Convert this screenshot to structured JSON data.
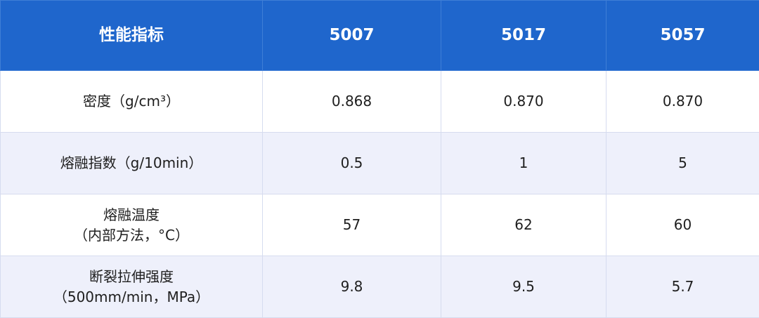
{
  "table": {
    "header": [
      "性能指标",
      "5007",
      "5017",
      "5057"
    ],
    "rows": [
      [
        "密度（g/cm³）",
        "0.868",
        "0.870",
        "0.870"
      ],
      [
        "熔融指数（g/10min）",
        "0.5",
        "1",
        "5"
      ],
      [
        "熔融温度\n（内部方法，°C）",
        "57",
        "62",
        "60"
      ],
      [
        "断裂拉伸强度\n（500mm/min，MPa）",
        "9.8",
        "9.5",
        "5.7"
      ]
    ]
  }
}
